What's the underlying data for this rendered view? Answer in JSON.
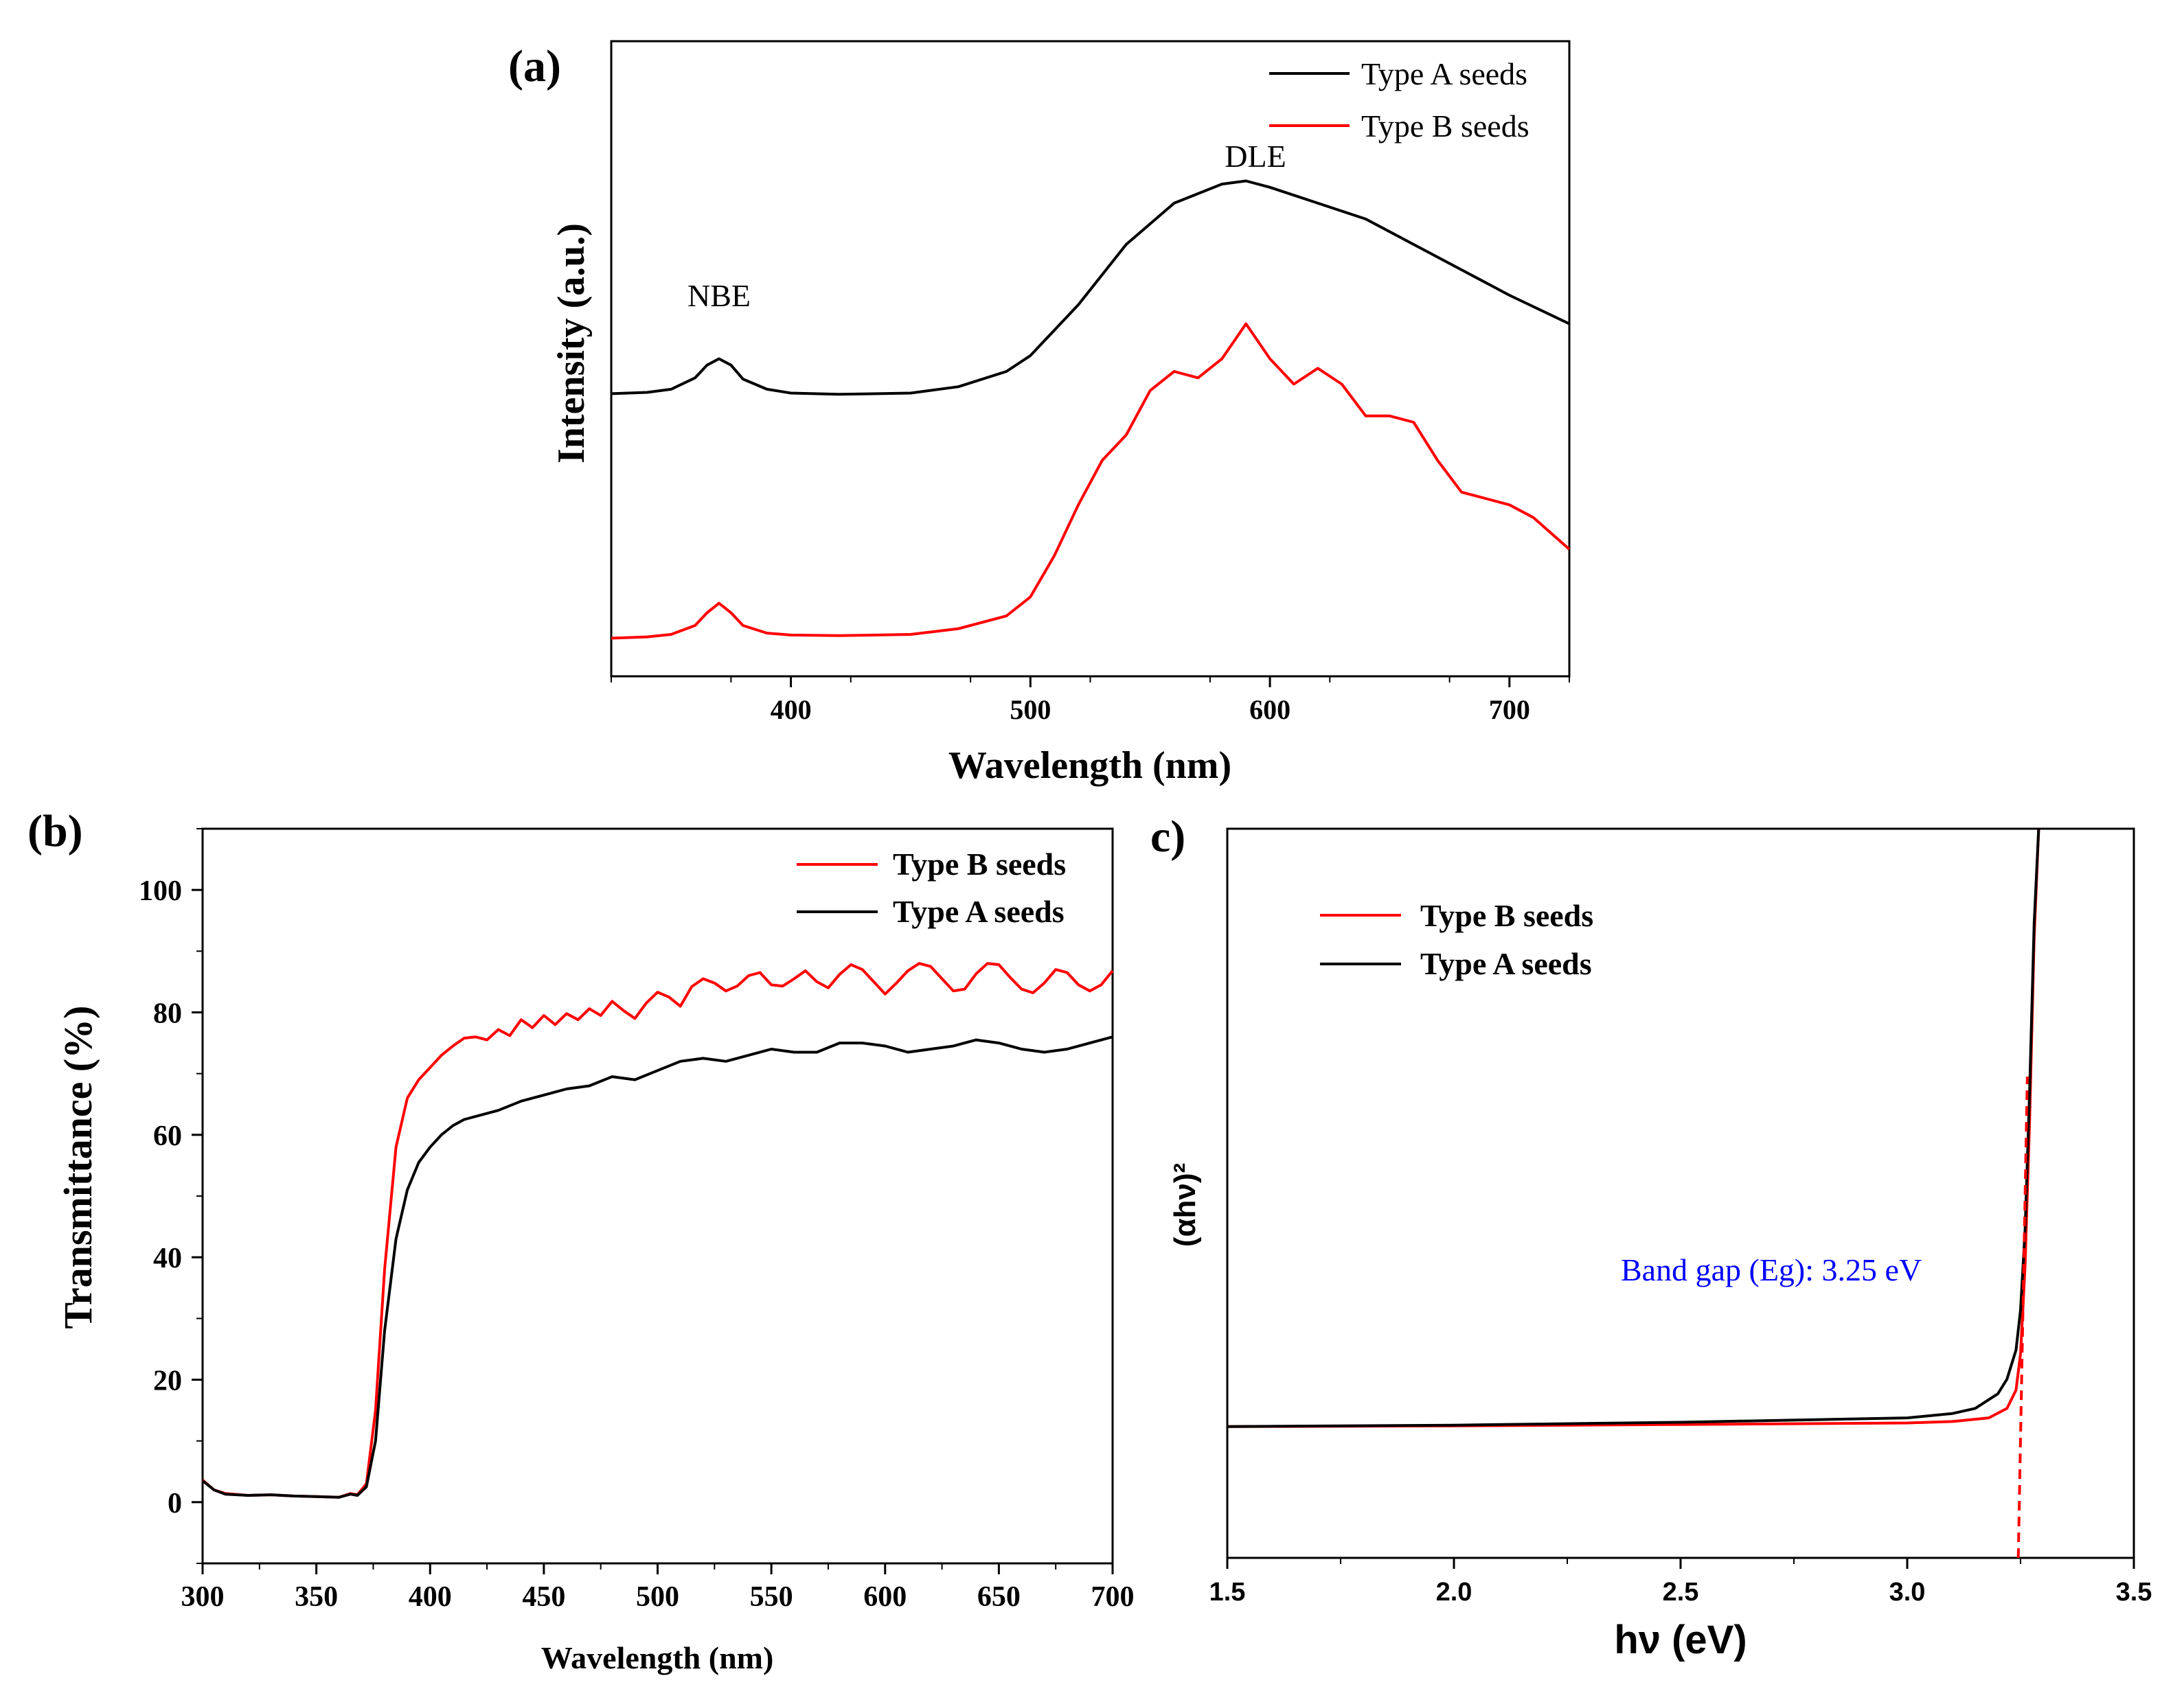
{
  "chart_data": [
    {
      "panel": "a",
      "type": "line",
      "panel_label": "(a)",
      "xlabel": "Wavelength (nm)",
      "ylabel": "Intensity (a.u.)",
      "xlim": [
        325,
        725
      ],
      "ylim": [
        0,
        1
      ],
      "xticks": [
        400,
        500,
        600,
        700
      ],
      "y_tick_labels": false,
      "legend_position": "top-right",
      "annotations": [
        {
          "text": "NBE",
          "x": 370,
          "y": 0.59
        },
        {
          "text": "DLE",
          "x": 595,
          "y": 0.85
        }
      ],
      "series": [
        {
          "name": "Type A seeds",
          "color": "#000000",
          "x": [
            325,
            340,
            350,
            360,
            365,
            370,
            375,
            380,
            390,
            400,
            420,
            450,
            470,
            490,
            500,
            520,
            540,
            560,
            580,
            590,
            600,
            620,
            640,
            660,
            680,
            700,
            725
          ],
          "y": [
            0.445,
            0.447,
            0.452,
            0.47,
            0.49,
            0.5,
            0.49,
            0.468,
            0.452,
            0.446,
            0.444,
            0.446,
            0.456,
            0.48,
            0.505,
            0.585,
            0.68,
            0.745,
            0.775,
            0.78,
            0.77,
            0.745,
            0.72,
            0.68,
            0.64,
            0.6,
            0.555
          ]
        },
        {
          "name": "Type B seeds",
          "color": "#ff0000",
          "x": [
            325,
            340,
            350,
            360,
            365,
            370,
            375,
            380,
            390,
            400,
            420,
            450,
            470,
            490,
            500,
            510,
            520,
            530,
            540,
            550,
            560,
            570,
            580,
            590,
            600,
            610,
            620,
            630,
            640,
            650,
            660,
            670,
            680,
            690,
            700,
            710,
            725
          ],
          "y": [
            0.06,
            0.062,
            0.066,
            0.08,
            0.1,
            0.115,
            0.1,
            0.08,
            0.068,
            0.065,
            0.064,
            0.066,
            0.075,
            0.095,
            0.125,
            0.19,
            0.27,
            0.34,
            0.38,
            0.45,
            0.48,
            0.47,
            0.5,
            0.555,
            0.5,
            0.46,
            0.485,
            0.46,
            0.41,
            0.41,
            0.4,
            0.34,
            0.29,
            0.28,
            0.27,
            0.25,
            0.2
          ]
        }
      ]
    },
    {
      "panel": "b",
      "type": "line",
      "panel_label": "(b)",
      "xlabel": "Wavelength (nm)",
      "ylabel": "Transmittance (%)",
      "xlim": [
        300,
        700
      ],
      "ylim": [
        -10,
        110
      ],
      "xticks": [
        300,
        350,
        400,
        450,
        500,
        550,
        600,
        650,
        700
      ],
      "yticks": [
        0,
        20,
        40,
        60,
        80,
        100
      ],
      "legend_position": "top-right",
      "series": [
        {
          "name": "Type B seeds",
          "color": "#ff0000",
          "x": [
            300,
            305,
            310,
            320,
            330,
            340,
            350,
            360,
            365,
            368,
            372,
            376,
            380,
            385,
            390,
            395,
            400,
            405,
            410,
            415,
            420,
            425,
            430,
            435,
            440,
            445,
            450,
            455,
            460,
            465,
            470,
            475,
            480,
            485,
            490,
            495,
            500,
            505,
            510,
            515,
            520,
            525,
            530,
            535,
            540,
            545,
            550,
            555,
            560,
            565,
            570,
            575,
            580,
            585,
            590,
            595,
            600,
            605,
            610,
            615,
            620,
            625,
            630,
            635,
            640,
            645,
            650,
            655,
            660,
            665,
            670,
            675,
            680,
            685,
            690,
            695,
            700
          ],
          "y": [
            3.6,
            2,
            1.4,
            1.1,
            1.2,
            1,
            0.9,
            0.8,
            1.4,
            1.2,
            3,
            15,
            38,
            58,
            66,
            69,
            71,
            73,
            74.5,
            75.8,
            76,
            75.5,
            77.2,
            76.2,
            78.8,
            77.5,
            79.5,
            78,
            79.8,
            78.8,
            80.6,
            79.5,
            81.8,
            80.3,
            79,
            81.5,
            83.3,
            82.5,
            81,
            84.2,
            85.5,
            84.8,
            83.5,
            84.3,
            86,
            86.5,
            84.5,
            84.3,
            85.5,
            86.8,
            85,
            84,
            86.2,
            87.8,
            87,
            85,
            83,
            84.8,
            86.8,
            88,
            87.5,
            85.5,
            83.5,
            83.8,
            86.3,
            88,
            87.8,
            85.7,
            83.8,
            83.2,
            84.8,
            87,
            86.5,
            84.5,
            83.5,
            84.5,
            86.8
          ]
        },
        {
          "name": "Type A seeds",
          "color": "#000000",
          "x": [
            300,
            305,
            310,
            320,
            330,
            340,
            350,
            360,
            365,
            368,
            372,
            376,
            380,
            385,
            390,
            395,
            400,
            405,
            410,
            415,
            420,
            430,
            440,
            450,
            460,
            470,
            480,
            490,
            500,
            510,
            520,
            530,
            540,
            550,
            560,
            570,
            580,
            590,
            600,
            610,
            620,
            630,
            640,
            650,
            660,
            670,
            680,
            690,
            700
          ],
          "y": [
            3.5,
            2,
            1.3,
            1.1,
            1.2,
            1,
            0.9,
            0.8,
            1.3,
            1.1,
            2.5,
            10,
            28,
            43,
            51,
            55.5,
            58,
            60,
            61.5,
            62.5,
            63,
            64,
            65.5,
            66.5,
            67.5,
            68,
            69.5,
            69,
            70.5,
            72,
            72.5,
            72,
            73,
            74,
            73.5,
            73.5,
            75,
            75,
            74.5,
            73.5,
            74,
            74.5,
            75.5,
            75,
            74,
            73.5,
            74,
            75,
            76
          ]
        }
      ]
    },
    {
      "panel": "c",
      "type": "line",
      "panel_label": "c)",
      "xlabel": "hν (eV)",
      "ylabel": "(αhν)²",
      "xlim": [
        1.5,
        3.5
      ],
      "ylim": [
        0,
        1
      ],
      "xticks": [
        1.5,
        2.0,
        2.5,
        3.0,
        3.5
      ],
      "y_tick_labels": false,
      "legend_position": "top-left",
      "annotations": [
        {
          "text": "Band gap (Eg): 3.25 eV",
          "x": 2.9,
          "y": 0.39,
          "color": "#0000ff"
        }
      ],
      "band_gap_eV": 3.25,
      "series": [
        {
          "name": "Type B seeds",
          "color": "#ff0000",
          "x": [
            1.5,
            2.0,
            2.5,
            3.0,
            3.1,
            3.18,
            3.22,
            3.24,
            3.25,
            3.26,
            3.27,
            3.28,
            3.29
          ],
          "y": [
            0.18,
            0.181,
            0.183,
            0.185,
            0.187,
            0.192,
            0.205,
            0.23,
            0.28,
            0.4,
            0.6,
            0.85,
            1.0
          ]
        },
        {
          "name": "Type A seeds",
          "color": "#000000",
          "x": [
            1.5,
            2.0,
            2.5,
            3.0,
            3.1,
            3.15,
            3.2,
            3.22,
            3.24,
            3.25,
            3.26,
            3.27,
            3.28,
            3.29
          ],
          "y": [
            0.18,
            0.182,
            0.186,
            0.192,
            0.198,
            0.205,
            0.225,
            0.245,
            0.285,
            0.34,
            0.45,
            0.64,
            0.87,
            1.0
          ]
        },
        {
          "name": "Tauc extrapolation",
          "color": "#ff0000",
          "dashed": true,
          "x": [
            3.245,
            3.265
          ],
          "y": [
            0.0,
            0.66
          ]
        }
      ]
    }
  ]
}
